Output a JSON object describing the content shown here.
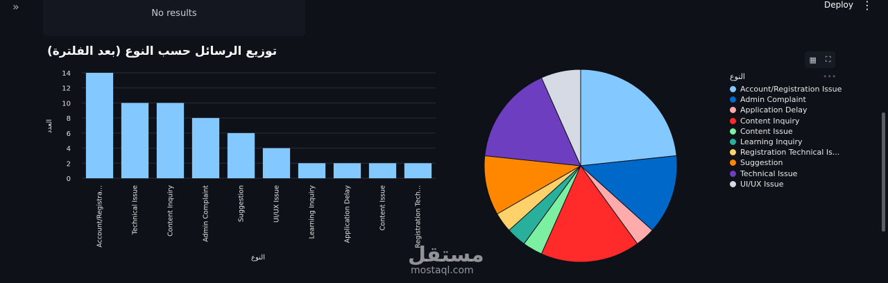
{
  "header": {
    "sidebar_toggle": "»",
    "deploy_label": "Deploy",
    "menu_icon": "⋮",
    "no_results": "No results"
  },
  "toolbar": {
    "table_icon": "▦",
    "fullscreen_icon": "⛶"
  },
  "watermark": {
    "arabic": "مستقل",
    "latin": "mostaql.com"
  },
  "chart_data": [
    {
      "type": "bar",
      "title": "توزيع الرسائل حسب النوع (بعد الفلترة)",
      "xlabel": "النوع",
      "ylabel": "العدد",
      "categories": [
        "Account/Registra...",
        "Technical Issue",
        "Content Inquiry",
        "Admin Complaint",
        "Suggestion",
        "UI/UX Issue",
        "Learning Inquiry",
        "Application Delay",
        "Content Issue",
        "Registration Tech..."
      ],
      "values": [
        14,
        10,
        10,
        8,
        6,
        4,
        2,
        2,
        2,
        2
      ],
      "ylim": [
        0,
        14
      ],
      "yticks": [
        0,
        2,
        4,
        6,
        8,
        10,
        12,
        14
      ],
      "grid": true,
      "color": "#83c9ff"
    },
    {
      "type": "pie",
      "legend_title": "النوع",
      "legend_placement": "right",
      "labels": [
        "Account/Registration Issue",
        "Admin Complaint",
        "Application Delay",
        "Content Inquiry",
        "Content Issue",
        "Learning Inquiry",
        "Registration Technical Is...",
        "Suggestion",
        "Technical Issue",
        "UI/UX Issue"
      ],
      "values": [
        14,
        8,
        2,
        10,
        2,
        2,
        2,
        6,
        10,
        4
      ],
      "colors": [
        "#83c9ff",
        "#0068c9",
        "#ffabab",
        "#ff2b2b",
        "#7defa1",
        "#29b09d",
        "#ffd16a",
        "#ff8700",
        "#6d3fc0",
        "#d5dae5"
      ]
    }
  ]
}
